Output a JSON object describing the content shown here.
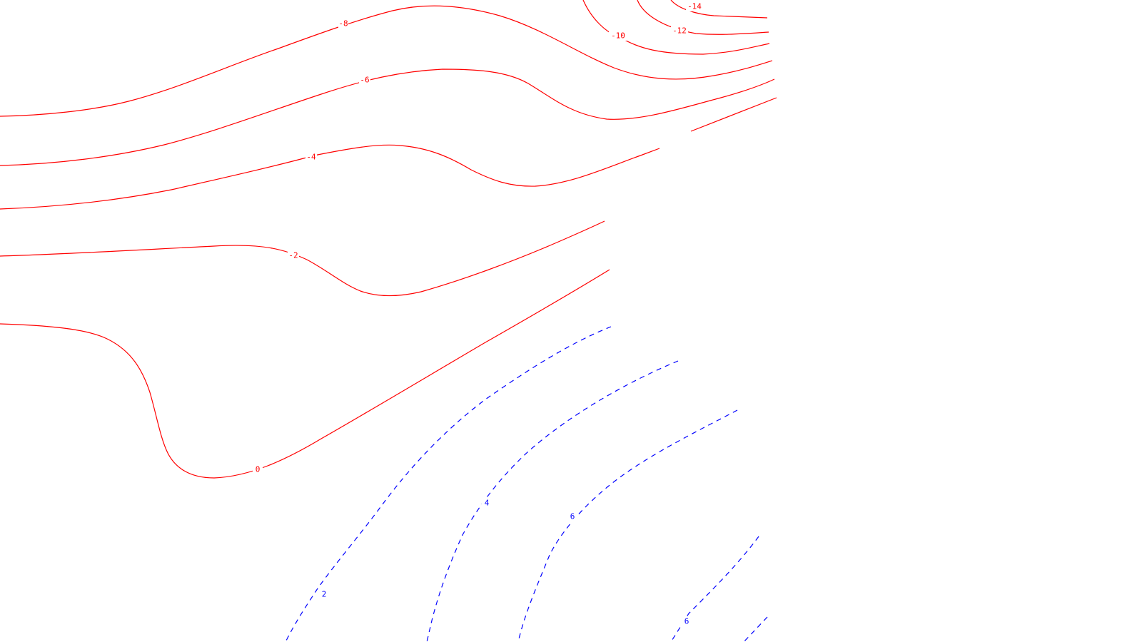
{
  "contour_map": {
    "colors": {
      "negative": "#ff0000",
      "positive": "#0000ff",
      "background": "#ffffff"
    },
    "negative_line_style": "solid",
    "positive_line_style": "dashed",
    "levels": [
      {
        "id": "neg14",
        "value": -14,
        "label": "-14",
        "sign": "negative"
      },
      {
        "id": "neg12",
        "value": -12,
        "label": "-12",
        "sign": "negative"
      },
      {
        "id": "neg10",
        "value": -10,
        "label": "-10",
        "sign": "negative"
      },
      {
        "id": "neg8",
        "value": -8,
        "label": "-8",
        "sign": "negative"
      },
      {
        "id": "neg6",
        "value": -6,
        "label": "-6",
        "sign": "negative"
      },
      {
        "id": "neg4",
        "value": -4,
        "label": "-4",
        "sign": "negative"
      },
      {
        "id": "neg2",
        "value": -2,
        "label": "-2",
        "sign": "negative"
      },
      {
        "id": "zero",
        "value": 0,
        "label": "0",
        "sign": "negative"
      },
      {
        "id": "pos2",
        "value": 2,
        "label": "2",
        "sign": "positive"
      },
      {
        "id": "pos4",
        "value": 4,
        "label": "4",
        "sign": "positive"
      },
      {
        "id": "pos6a",
        "value": 6,
        "label": "6",
        "sign": "positive"
      },
      {
        "id": "pos6b",
        "value": 6,
        "label": "6",
        "sign": "positive"
      }
    ]
  }
}
